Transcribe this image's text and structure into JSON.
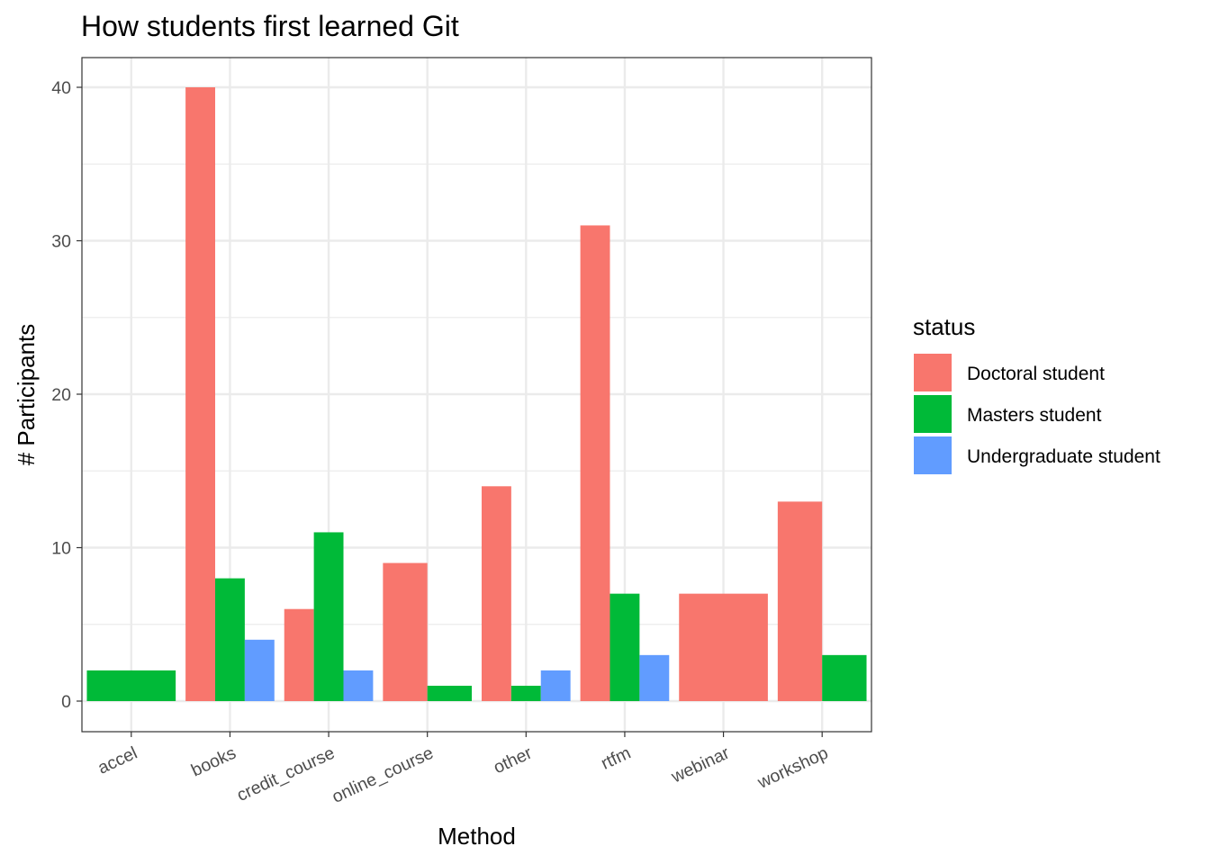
{
  "chart_data": {
    "type": "bar",
    "title": "How students first learned Git",
    "xlabel": "Method",
    "ylabel": "# Participants",
    "categories": [
      "accel",
      "books",
      "credit_course",
      "online_course",
      "other",
      "rtfm",
      "webinar",
      "workshop"
    ],
    "series": [
      {
        "name": "Doctoral student",
        "color": "#F8766D",
        "values": [
          null,
          40,
          6,
          9,
          14,
          31,
          7,
          13
        ]
      },
      {
        "name": "Masters student",
        "color": "#00BA38",
        "values": [
          2,
          8,
          11,
          1,
          1,
          7,
          null,
          3
        ]
      },
      {
        "name": "Undergraduate student",
        "color": "#619CFF",
        "values": [
          null,
          4,
          2,
          null,
          2,
          3,
          null,
          null
        ]
      }
    ],
    "ylim": [
      -2,
      42
    ],
    "yticks": [
      0,
      10,
      20,
      30,
      40
    ],
    "grid": true,
    "legend": {
      "title": "status",
      "position": "right"
    },
    "theme": "bw"
  }
}
